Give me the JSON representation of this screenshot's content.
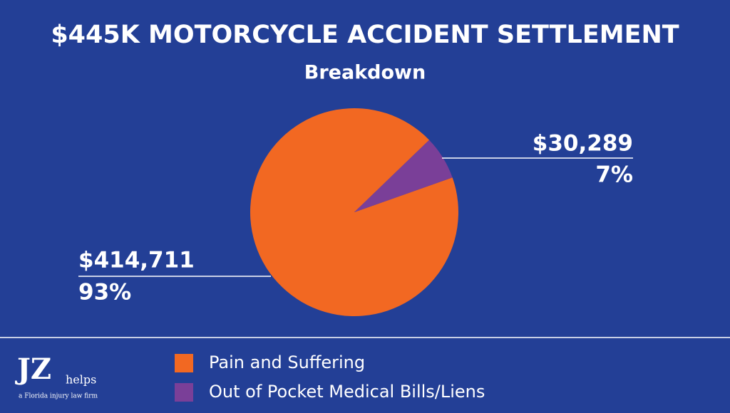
{
  "chart_data": {
    "type": "pie",
    "title": "$445K MOTORCYCLE ACCIDENT SETTLEMENT",
    "subtitle": "Breakdown",
    "categories": [
      "Pain and Suffering",
      "Out of Pocket Medical Bills/Liens"
    ],
    "values": [
      414711,
      30289
    ],
    "value_labels": [
      "$414,711",
      "$30,289"
    ],
    "percentages": [
      93,
      7
    ],
    "percentage_labels": [
      "93%",
      "7%"
    ],
    "colors": [
      "#f26822",
      "#7a3f98"
    ],
    "legend": "bottom"
  },
  "logo": {
    "mark": "JZ",
    "word": "helps",
    "tagline": "a Florida injury law firm"
  }
}
